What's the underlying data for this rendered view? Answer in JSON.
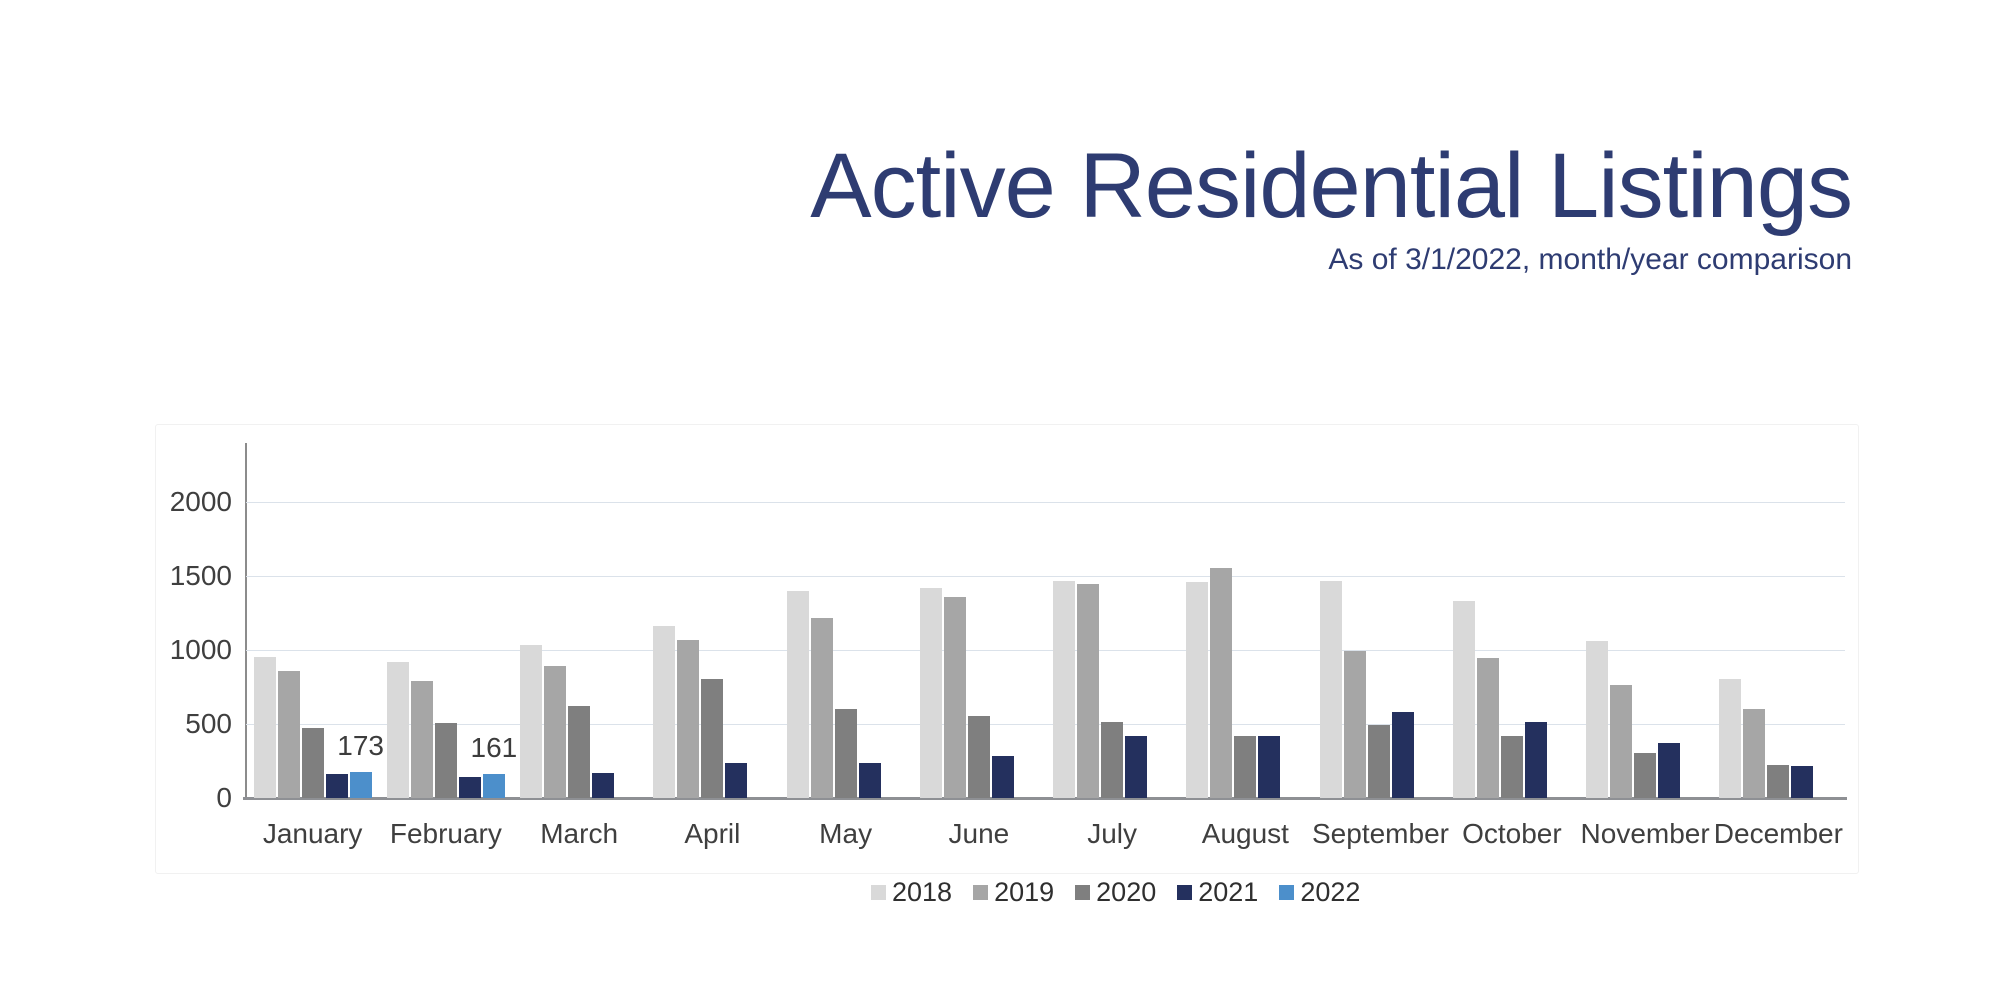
{
  "slide": {
    "title": "Active Residential Listings",
    "subtitle": "As of 3/1/2022, month/year comparison"
  },
  "colors": {
    "title_text": "#2e3c72",
    "subtitle_text": "#2e3c72",
    "axis_line": "#8c8c8c",
    "gridline": "#dbe2ea",
    "series_2018": "#d9d9d9",
    "series_2019": "#a6a6a6",
    "series_2020": "#7f7f7f",
    "series_2021": "#24305e",
    "series_2022": "#4c8fcb"
  },
  "chart_data": {
    "type": "bar",
    "title": "Active Residential Listings",
    "subtitle": "As of 3/1/2022, month/year comparison",
    "xlabel": "",
    "ylabel": "",
    "ylim": [
      0,
      2400
    ],
    "yticks": [
      0,
      500,
      1000,
      1500,
      2000
    ],
    "grid": true,
    "legend_position": "top-center",
    "categories": [
      "January",
      "February",
      "March",
      "April",
      "May",
      "June",
      "July",
      "August",
      "September",
      "October",
      "November",
      "December"
    ],
    "series": [
      {
        "name": "2018",
        "color": "#d9d9d9",
        "values": [
          950,
          920,
          1035,
          1160,
          1400,
          1420,
          1465,
          1460,
          1465,
          1330,
          1060,
          805
        ]
      },
      {
        "name": "2019",
        "color": "#a6a6a6",
        "values": [
          860,
          790,
          890,
          1065,
          1215,
          1355,
          1445,
          1555,
          990,
          945,
          765,
          600
        ]
      },
      {
        "name": "2020",
        "color": "#7f7f7f",
        "values": [
          470,
          505,
          620,
          800,
          600,
          555,
          510,
          420,
          490,
          420,
          305,
          220
        ]
      },
      {
        "name": "2021",
        "color": "#24305e",
        "values": [
          160,
          140,
          170,
          235,
          235,
          285,
          420,
          420,
          580,
          515,
          370,
          215
        ]
      },
      {
        "name": "2022",
        "color": "#4c8fcb",
        "values": [
          173,
          161,
          null,
          null,
          null,
          null,
          null,
          null,
          null,
          null,
          null,
          null
        ]
      }
    ],
    "data_labels": [
      {
        "category": "January",
        "series": "2022",
        "text": "173"
      },
      {
        "category": "February",
        "series": "2022",
        "text": "161"
      }
    ]
  }
}
